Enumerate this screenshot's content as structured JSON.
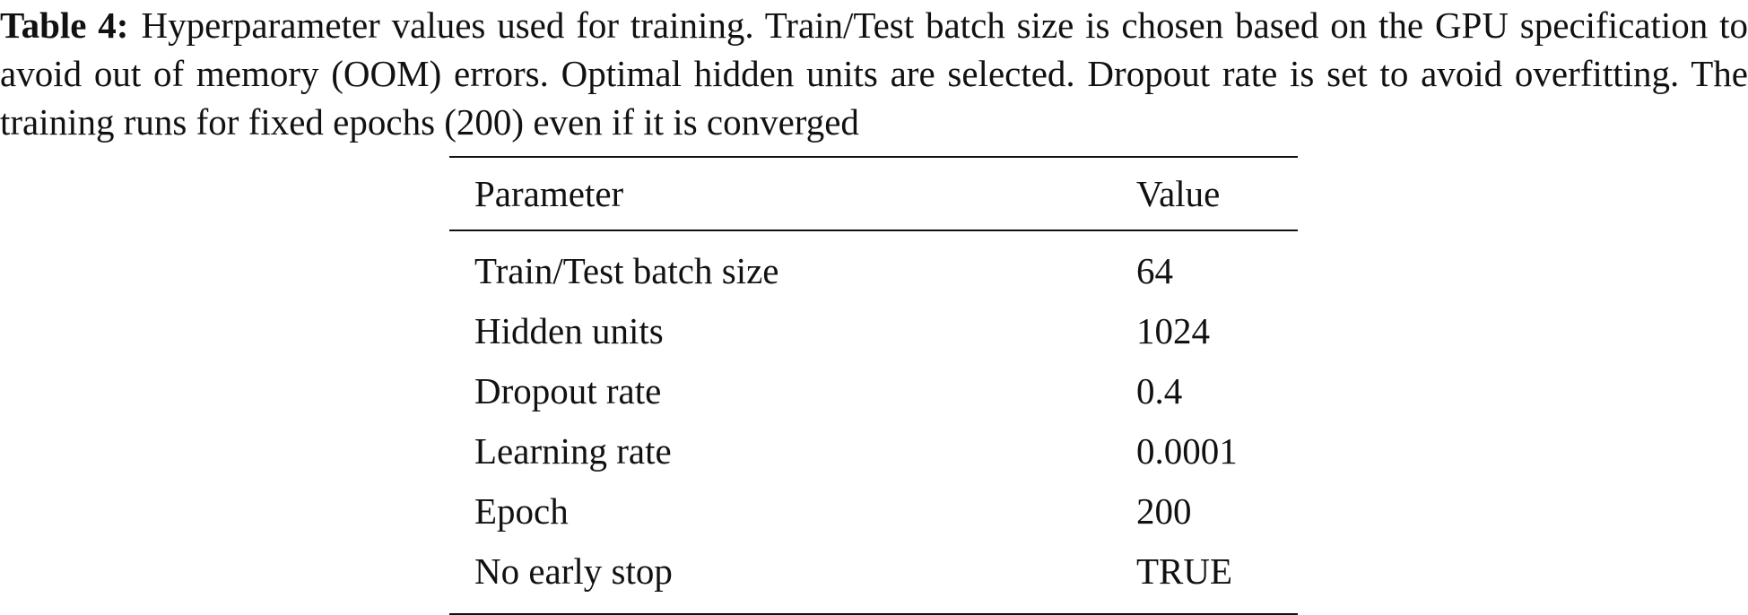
{
  "caption": {
    "label": "Table 4:",
    "text": "Hyperparameter values used for training. Train/Test batch size is chosen based on the GPU specification to avoid out of memory (OOM) errors. Optimal hidden units are selected. Dropout rate is set to avoid overfitting. The training runs for fixed epochs (200) even if it is converged"
  },
  "table": {
    "headers": {
      "parameter": "Parameter",
      "value": "Value"
    },
    "rows": [
      {
        "parameter": "Train/Test batch size",
        "value": "64"
      },
      {
        "parameter": "Hidden units",
        "value": "1024"
      },
      {
        "parameter": "Dropout rate",
        "value": "0.4"
      },
      {
        "parameter": "Learning rate",
        "value": "0.0001"
      },
      {
        "parameter": "Epoch",
        "value": "200"
      },
      {
        "parameter": "No early stop",
        "value": "TRUE"
      }
    ]
  }
}
